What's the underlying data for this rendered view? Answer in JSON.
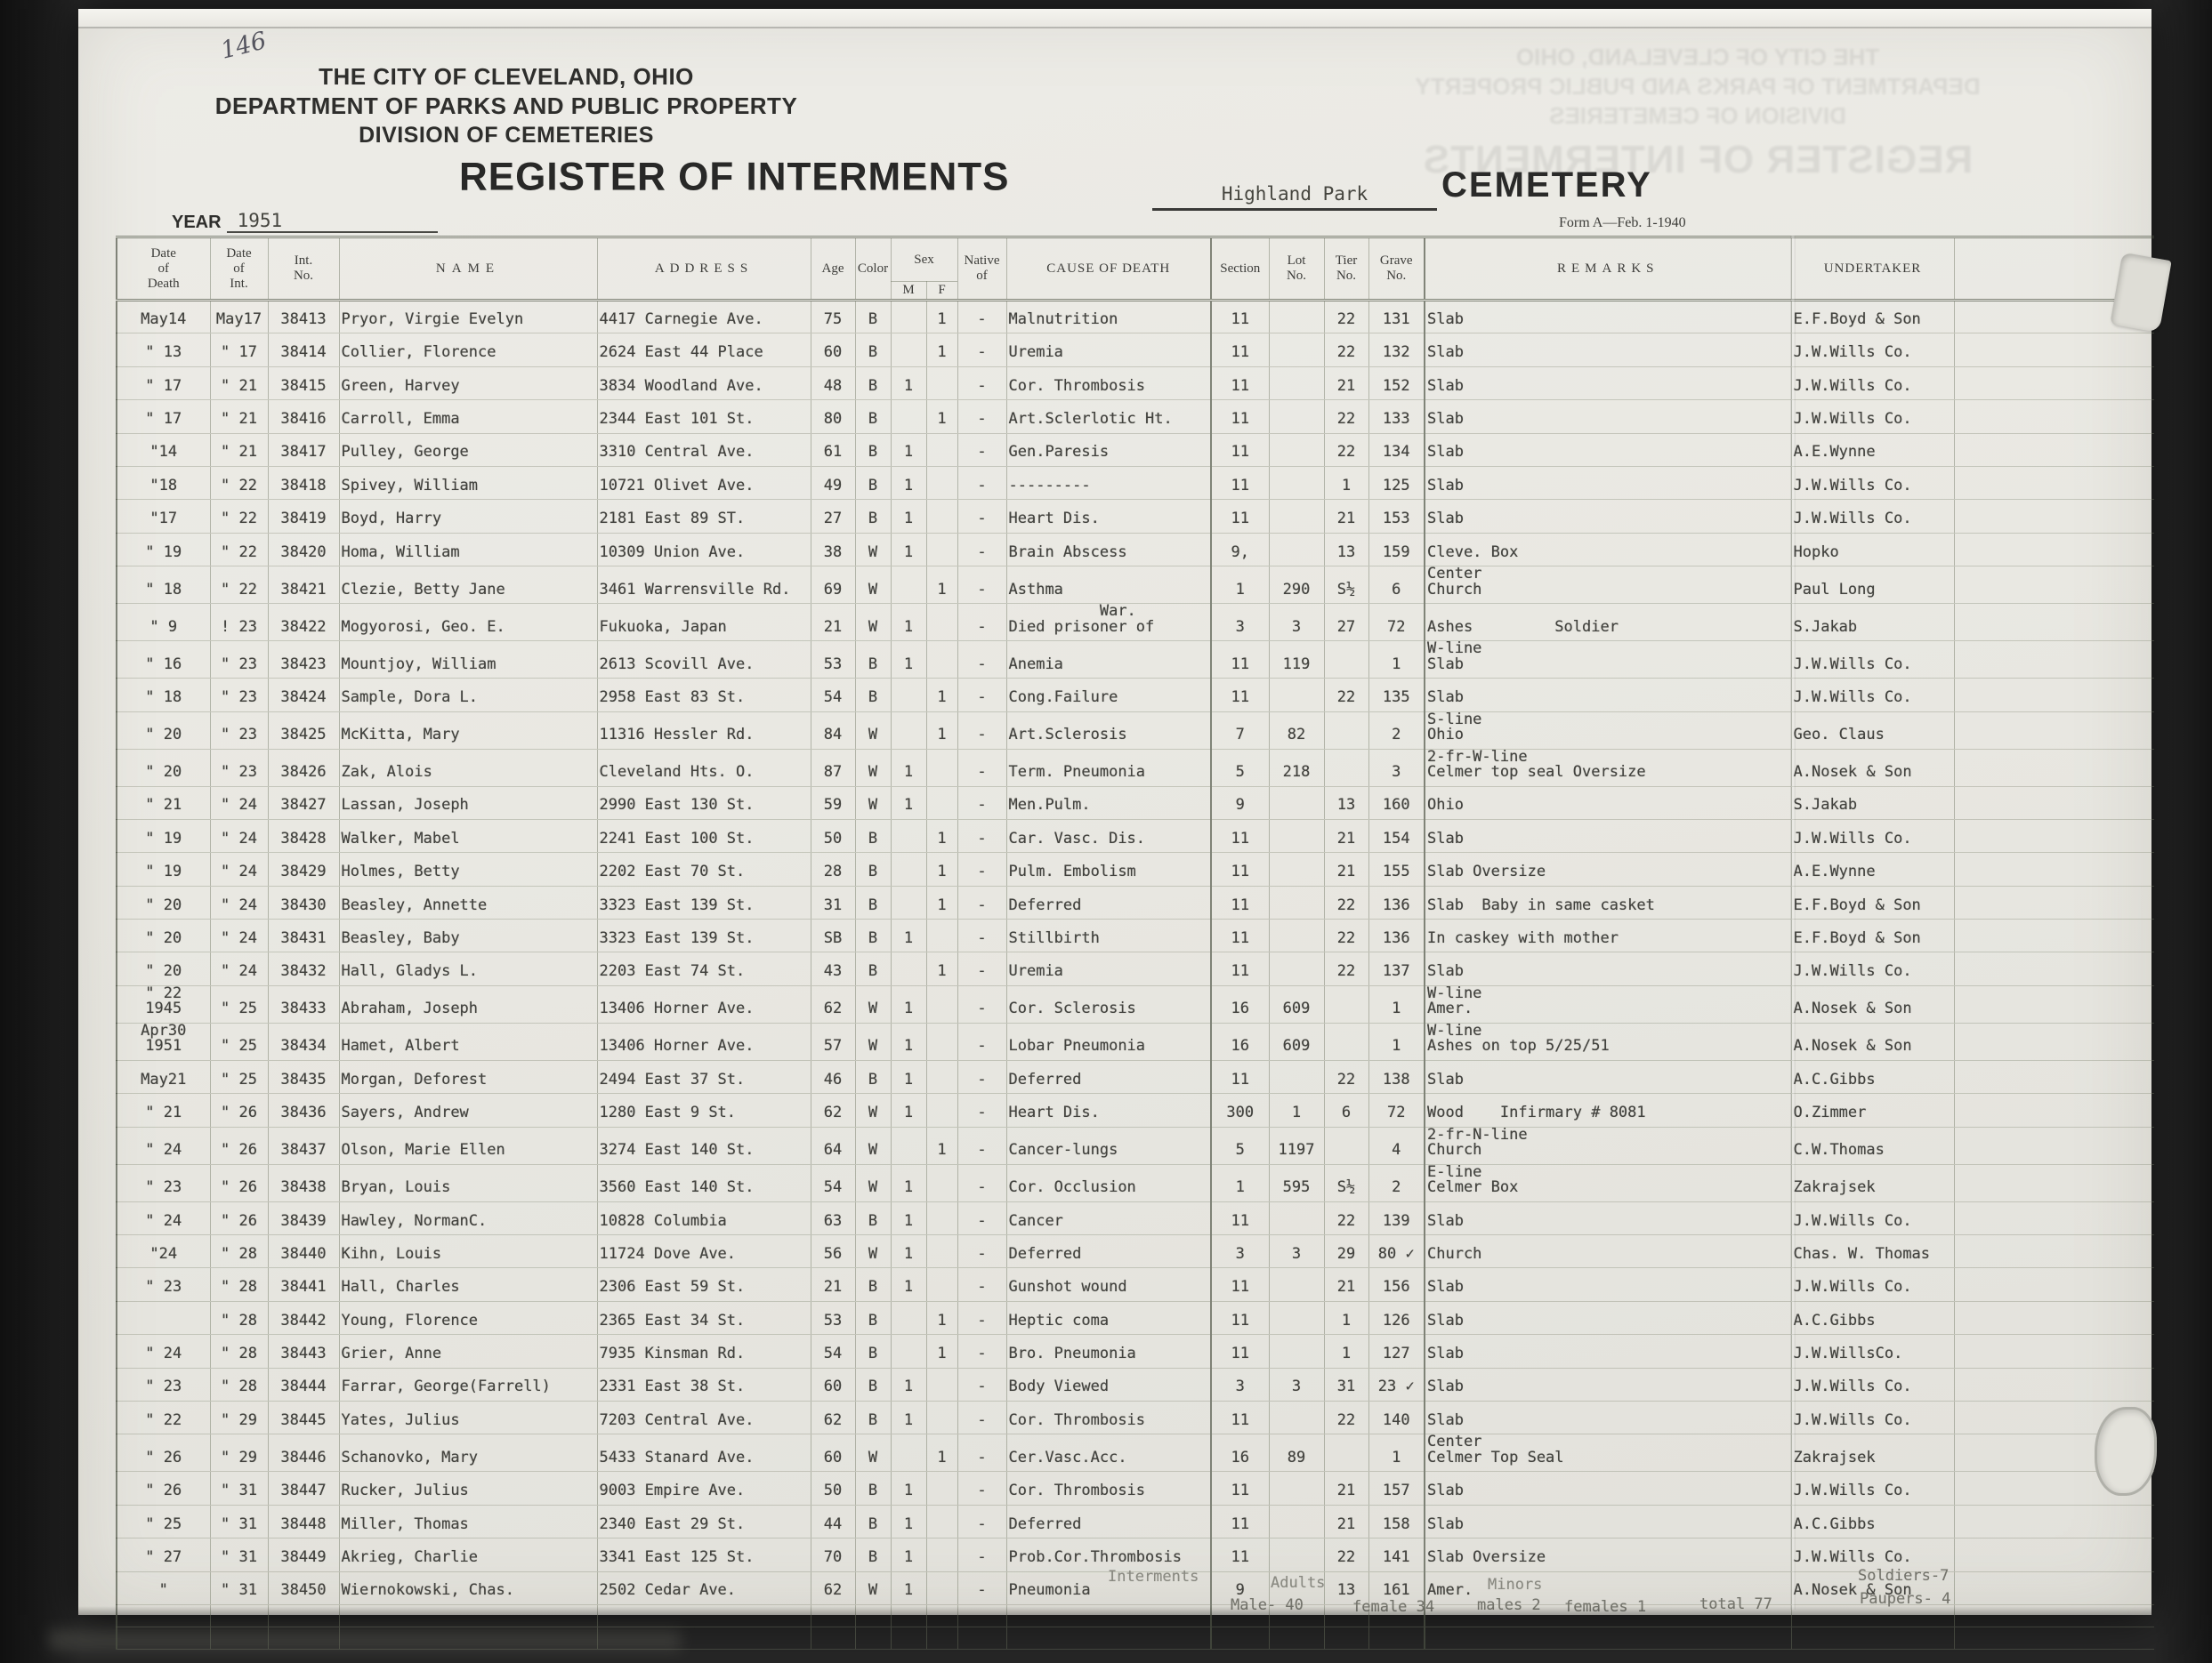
{
  "page": {
    "page_number": "146",
    "org_line1": "THE CITY OF CLEVELAND, OHIO",
    "org_line2": "DEPARTMENT OF PARKS AND PUBLIC PROPERTY",
    "org_line3": "DIVISION OF CEMETERIES",
    "register_title": "REGISTER OF INTERMENTS",
    "cemetery_name": "Highland Park",
    "cemetery_label": "CEMETERY",
    "year_label": "YEAR",
    "year_value": "1951",
    "form_note": "Form A—Feb. 1-1940"
  },
  "table": {
    "headers": {
      "death": "Date\nof\nDeath",
      "int": "Date\nof\nInt.",
      "int_no": "Int.\nNo.",
      "name": "NAME",
      "address": "ADDRESS",
      "age": "Age",
      "color": "Color",
      "sex": "Sex",
      "m": "M",
      "f": "F",
      "native": "Native\nof",
      "cause": "CAUSE OF DEATH",
      "section": "Section",
      "lot": "Lot\nNo.",
      "tier": "Tier\nNo.",
      "grave": "Grave\nNo.",
      "remarks": "REMARKS",
      "undertaker": "UNDERTAKER"
    },
    "column_keys": [
      "date-of-death",
      "date-of-int",
      "int-no",
      "name",
      "address",
      "age",
      "color",
      "sex-m",
      "sex-f",
      "native-of",
      "cause-of-death",
      "section",
      "lot-no",
      "tier-no",
      "grave-no",
      "remarks",
      "undertaker"
    ],
    "rows": [
      [
        "May14",
        "May17",
        "38413",
        "Pryor, Virgie Evelyn",
        "4417 Carnegie Ave.",
        "75",
        "B",
        "",
        "1",
        "-",
        "Malnutrition",
        "11",
        "",
        "22",
        "131",
        "Slab",
        "E.F.Boyd & Son"
      ],
      [
        "\" 13",
        "\" 17",
        "38414",
        "Collier, Florence",
        "2624 East 44 Place",
        "60",
        "B",
        "",
        "1",
        "-",
        "Uremia",
        "11",
        "",
        "22",
        "132",
        "Slab",
        "J.W.Wills Co."
      ],
      [
        "\" 17",
        "\" 21",
        "38415",
        "Green, Harvey",
        "3834 Woodland Ave.",
        "48",
        "B",
        "1",
        "",
        "-",
        "Cor. Thrombosis",
        "11",
        "",
        "21",
        "152",
        "Slab",
        "J.W.Wills Co."
      ],
      [
        "\" 17",
        "\" 21",
        "38416",
        "Carroll, Emma",
        "2344 East 101 St.",
        "80",
        "B",
        "",
        "1",
        "-",
        "Art.Sclerlotic Ht.",
        "11",
        "",
        "22",
        "133",
        "Slab",
        "J.W.Wills Co."
      ],
      [
        "\"14",
        "\" 21",
        "38417",
        "Pulley, George",
        "3310 Central Ave.",
        "61",
        "B",
        "1",
        "",
        "-",
        "Gen.Paresis",
        "11",
        "",
        "22",
        "134",
        "Slab",
        "A.E.Wynne"
      ],
      [
        "\"18",
        "\" 22",
        "38418",
        "Spivey, William",
        "10721 Olivet Ave.",
        "49",
        "B",
        "1",
        "",
        "-",
        "---------",
        "11",
        "",
        "1",
        "125",
        "Slab",
        "J.W.Wills Co."
      ],
      [
        "\"17",
        "\" 22",
        "38419",
        "Boyd, Harry",
        "2181 East 89 ST.",
        "27",
        "B",
        "1",
        "",
        "-",
        "Heart Dis.",
        "11",
        "",
        "21",
        "153",
        "Slab",
        "J.W.Wills Co."
      ],
      [
        "\" 19",
        "\" 22",
        "38420",
        "Homa, William",
        "10309 Union Ave.",
        "38",
        "W",
        "1",
        "",
        "-",
        "Brain Abscess",
        "9,",
        "",
        "13",
        "159",
        "Cleve. Box",
        "Hopko"
      ],
      [
        "\" 18",
        "\" 22",
        "38421",
        "Clezie, Betty Jane",
        "3461 Warrensville Rd.",
        "69",
        "W",
        "",
        "1",
        "-",
        "Asthma",
        "1",
        "290",
        "S½",
        "6",
        "Center\nChurch",
        "Paul Long"
      ],
      [
        "\" 9",
        "! 23",
        "38422",
        "Mogyorosi, Geo. E.",
        "Fukuoka, Japan",
        "21",
        "W",
        "1",
        "",
        "-",
        "          War.\nDied prisoner of",
        "3",
        "3",
        "27",
        "72",
        "Ashes         Soldier",
        "S.Jakab"
      ],
      [
        "\" 16",
        "\" 23",
        "38423",
        "Mountjoy, William",
        "2613 Scovill Ave.",
        "53",
        "B",
        "1",
        "",
        "-",
        "Anemia",
        "11",
        "119",
        "",
        "1",
        "W-line\nSlab",
        "J.W.Wills Co."
      ],
      [
        "\" 18",
        "\" 23",
        "38424",
        "Sample, Dora L.",
        "2958 East 83 St.",
        "54",
        "B",
        "",
        "1",
        "-",
        "Cong.Failure",
        "11",
        "",
        "22",
        "135",
        "Slab",
        "J.W.Wills Co."
      ],
      [
        "\" 20",
        "\" 23",
        "38425",
        "McKitta, Mary",
        "11316 Hessler Rd.",
        "84",
        "W",
        "",
        "1",
        "-",
        "Art.Sclerosis",
        "7",
        "82",
        "",
        "2",
        "S-line\nOhio",
        "Geo. Claus"
      ],
      [
        "\" 20",
        "\" 23",
        "38426",
        "Zak, Alois",
        "Cleveland Hts. O.",
        "87",
        "W",
        "1",
        "",
        "-",
        "Term. Pneumonia",
        "5",
        "218",
        "",
        "3",
        "2-fr-W-line\nCelmer top seal Oversize",
        "A.Nosek & Son"
      ],
      [
        "\" 21",
        "\" 24",
        "38427",
        "Lassan, Joseph",
        "2990 East 130 St.",
        "59",
        "W",
        "1",
        "",
        "-",
        "Men.Pulm.",
        "9",
        "",
        "13",
        "160",
        "Ohio",
        "S.Jakab"
      ],
      [
        "\" 19",
        "\" 24",
        "38428",
        "Walker, Mabel",
        "2241 East 100 St.",
        "50",
        "B",
        "",
        "1",
        "-",
        "Car. Vasc. Dis.",
        "11",
        "",
        "21",
        "154",
        "Slab",
        "J.W.Wills Co."
      ],
      [
        "\" 19",
        "\" 24",
        "38429",
        "Holmes, Betty",
        "2202 East 70 St.",
        "28",
        "B",
        "",
        "1",
        "-",
        "Pulm. Embolism",
        "11",
        "",
        "21",
        "155",
        "Slab Oversize",
        "A.E.Wynne"
      ],
      [
        "\" 20",
        "\" 24",
        "38430",
        "Beasley, Annette",
        "3323 East 139 St.",
        "31",
        "B",
        "",
        "1",
        "-",
        "Deferred",
        "11",
        "",
        "22",
        "136",
        "Slab  Baby in same casket",
        "E.F.Boyd & Son"
      ],
      [
        "\" 20",
        "\" 24",
        "38431",
        "Beasley, Baby",
        "3323 East 139 St.",
        "SB",
        "B",
        "1",
        "",
        "-",
        "Stillbirth",
        "11",
        "",
        "22",
        "136",
        "In caskey with mother",
        "E.F.Boyd & Son"
      ],
      [
        "\" 20",
        "\" 24",
        "38432",
        "Hall, Gladys L.",
        "2203 East 74 St.",
        "43",
        "B",
        "",
        "1",
        "-",
        "Uremia",
        "11",
        "",
        "22",
        "137",
        "Slab",
        "J.W.Wills Co."
      ],
      [
        "\" 22\n1945",
        "\" 25",
        "38433",
        "Abraham, Joseph",
        "13406 Horner Ave.",
        "62",
        "W",
        "1",
        "",
        "-",
        "Cor. Sclerosis",
        "16",
        "609",
        "",
        "1",
        "W-line\nAmer.",
        "A.Nosek & Son"
      ],
      [
        "Apr30\n1951",
        "\" 25",
        "38434",
        "Hamet, Albert",
        "13406 Horner Ave.",
        "57",
        "W",
        "1",
        "",
        "-",
        "Lobar Pneumonia",
        "16",
        "609",
        "",
        "1",
        "W-line\nAshes on top 5/25/51",
        "A.Nosek & Son"
      ],
      [
        "May21",
        "\" 25",
        "38435",
        "Morgan, Deforest",
        "2494 East 37 St.",
        "46",
        "B",
        "1",
        "",
        "-",
        "Deferred",
        "11",
        "",
        "22",
        "138",
        "Slab",
        "A.C.Gibbs"
      ],
      [
        "\" 21",
        "\" 26",
        "38436",
        "Sayers, Andrew",
        "1280 East 9 St.",
        "62",
        "W",
        "1",
        "",
        "-",
        "Heart Dis.",
        "300",
        "1",
        "6",
        "72",
        "Wood    Infirmary # 8081",
        "O.Zimmer"
      ],
      [
        "\" 24",
        "\" 26",
        "38437",
        "Olson, Marie Ellen",
        "3274 East 140 St.",
        "64",
        "W",
        "",
        "1",
        "-",
        "Cancer-lungs",
        "5",
        "1197",
        "",
        "4",
        "2-fr-N-line\nChurch",
        "C.W.Thomas"
      ],
      [
        "\" 23",
        "\" 26",
        "38438",
        "Bryan, Louis",
        "3560 East 140 St.",
        "54",
        "W",
        "1",
        "",
        "-",
        "Cor. Occlusion",
        "1",
        "595",
        "S½",
        "2",
        "E-line\nCelmer Box",
        "Zakrajsek"
      ],
      [
        "\" 24",
        "\" 26",
        "38439",
        "Hawley, NormanC.",
        "10828 Columbia",
        "63",
        "B",
        "1",
        "",
        "-",
        "Cancer",
        "11",
        "",
        "22",
        "139",
        "Slab",
        "J.W.Wills Co."
      ],
      [
        "\"24",
        "\" 28",
        "38440",
        "Kihn, Louis",
        "11724 Dove Ave.",
        "56",
        "W",
        "1",
        "",
        "-",
        "Deferred",
        "3",
        "3",
        "29",
        "80 ✓",
        "Church",
        "Chas. W. Thomas"
      ],
      [
        "\" 23",
        "\" 28",
        "38441",
        "Hall, Charles",
        "2306 East 59 St.",
        "21",
        "B",
        "1",
        "",
        "-",
        "Gunshot wound",
        "11",
        "",
        "21",
        "156",
        "Slab",
        "J.W.Wills Co."
      ],
      [
        "",
        "\" 28",
        "38442",
        "Young, Florence",
        "2365 East 34 St.",
        "53",
        "B",
        "",
        "1",
        "-",
        "Heptic coma",
        "11",
        "",
        "1",
        "126",
        "Slab",
        "A.C.Gibbs"
      ],
      [
        "\" 24",
        "\" 28",
        "38443",
        "Grier, Anne",
        "7935 Kinsman Rd.",
        "54",
        "B",
        "",
        "1",
        "-",
        "Bro. Pneumonia",
        "11",
        "",
        "1",
        "127",
        "Slab",
        "J.W.WillsCo."
      ],
      [
        "\" 23",
        "\" 28",
        "38444",
        "Farrar, George(Farrell)",
        "2331 East 38 St.",
        "60",
        "B",
        "1",
        "",
        "-",
        "Body Viewed",
        "3",
        "3",
        "31",
        "23 ✓",
        "Slab",
        "J.W.Wills Co."
      ],
      [
        "\" 22",
        "\" 29",
        "38445",
        "Yates, Julius",
        "7203 Central Ave.",
        "62",
        "B",
        "1",
        "",
        "-",
        "Cor. Thrombosis",
        "11",
        "",
        "22",
        "140",
        "Slab",
        "J.W.Wills Co."
      ],
      [
        "\" 26",
        "\" 29",
        "38446",
        "Schanovko, Mary",
        "5433 Stanard Ave.",
        "60",
        "W",
        "",
        "1",
        "-",
        "Cer.Vasc.Acc.",
        "16",
        "89",
        "",
        "1",
        "Center\nCelmer Top Seal",
        "Zakrajsek"
      ],
      [
        "\" 26",
        "\" 31",
        "38447",
        "Rucker, Julius",
        "9003 Empire Ave.",
        "50",
        "B",
        "1",
        "",
        "-",
        "Cor. Thrombosis",
        "11",
        "",
        "21",
        "157",
        "Slab",
        "J.W.Wills Co."
      ],
      [
        "\" 25",
        "\" 31",
        "38448",
        "Miller, Thomas",
        "2340 East 29 St.",
        "44",
        "B",
        "1",
        "",
        "-",
        "Deferred",
        "11",
        "",
        "21",
        "158",
        "Slab",
        "A.C.Gibbs"
      ],
      [
        "\" 27",
        "\" 31",
        "38449",
        "Akrieg, Charlie",
        "3341 East 125 St.",
        "70",
        "B",
        "1",
        "",
        "-",
        "Prob.Cor.Thrombosis",
        "11",
        "",
        "22",
        "141",
        "Slab Oversize",
        "J.W.Wills Co."
      ],
      [
        "\"",
        "\" 31",
        "38450",
        "Wiernokowski, Chas.",
        "2502 Cedar Ave.",
        "62",
        "W",
        "1",
        "",
        "-",
        "Pneumonia",
        "9",
        "",
        "13",
        "161",
        "Amer.",
        "A.Nosek & Son"
      ]
    ]
  },
  "footer": {
    "interments_label": "Interments",
    "adults_label": "Adults",
    "minors_label": "Minors",
    "soldiers": "Soldiers-7",
    "paupers": "Paupers- 4",
    "male_total": "Male- 40",
    "female_total": "female 34",
    "minor_males": "males 2",
    "minor_females": "females 1",
    "grand_total": "total 77"
  }
}
